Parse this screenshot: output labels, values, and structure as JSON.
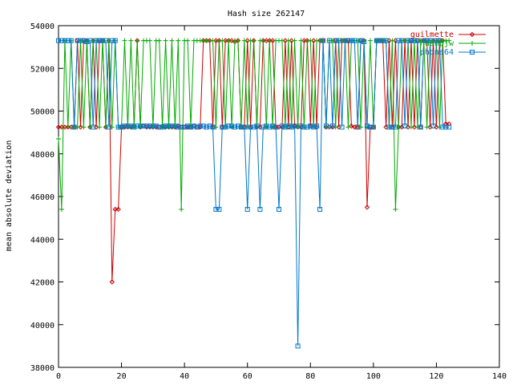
{
  "chart_data": {
    "type": "line",
    "title": "Hash size 262147",
    "xlabel": "",
    "ylabel": "mean absolute deviation",
    "xlim": [
      0,
      140
    ],
    "ylim": [
      38000,
      54000
    ],
    "xticks": [
      0,
      20,
      40,
      60,
      80,
      100,
      120,
      140
    ],
    "yticks": [
      38000,
      40000,
      42000,
      44000,
      46000,
      48000,
      50000,
      52000,
      54000
    ],
    "xtick_labels": [
      "0",
      "20",
      "40",
      "60",
      "80",
      "100",
      "120",
      "140"
    ],
    "ytick_labels": [
      "38000",
      "40000",
      "42000",
      "44000",
      "46000",
      "48000",
      "50000",
      "52000",
      "54000"
    ],
    "grid": false,
    "legend_position": "top-right",
    "series": [
      {
        "name": "guilmette",
        "color": "#cc0000",
        "marker": "diamond",
        "x": [
          0,
          1,
          2,
          3,
          4,
          5,
          6,
          7,
          8,
          9,
          10,
          11,
          12,
          13,
          14,
          15,
          16,
          17,
          18,
          19,
          20,
          21,
          22,
          23,
          24,
          25,
          26,
          27,
          28,
          29,
          30,
          31,
          32,
          33,
          34,
          35,
          36,
          37,
          38,
          39,
          40,
          41,
          42,
          43,
          44,
          45,
          46,
          47,
          48,
          49,
          50,
          51,
          52,
          53,
          54,
          55,
          56,
          57,
          58,
          59,
          60,
          61,
          62,
          63,
          64,
          65,
          66,
          67,
          68,
          69,
          70,
          71,
          72,
          73,
          74,
          75,
          76,
          77,
          78,
          79,
          80,
          81,
          82,
          83,
          84,
          85,
          86,
          87,
          88,
          89,
          90,
          91,
          92,
          93,
          94,
          95,
          96,
          97,
          98,
          99,
          100,
          101,
          102,
          103,
          104,
          105,
          106,
          107,
          108,
          109,
          110,
          111,
          112,
          113,
          114,
          115,
          116,
          117,
          118,
          119,
          120,
          121,
          122,
          123,
          124
        ],
        "y": [
          49250,
          49250,
          49250,
          49250,
          49250,
          49250,
          53300,
          49250,
          53300,
          53300,
          49250,
          53300,
          49250,
          53300,
          53300,
          49250,
          53300,
          42000,
          45400,
          45400,
          49250,
          49250,
          49250,
          49250,
          49300,
          53300,
          49250,
          49300,
          49250,
          49250,
          49250,
          49250,
          49250,
          49300,
          49250,
          49250,
          49250,
          49250,
          49300,
          49250,
          49250,
          49250,
          49250,
          49300,
          49250,
          49250,
          53300,
          53300,
          53300,
          49250,
          53300,
          53300,
          49250,
          53300,
          53300,
          53300,
          53250,
          53300,
          49250,
          49250,
          53300,
          49250,
          53300,
          49250,
          49250,
          53300,
          53300,
          53300,
          53300,
          49250,
          49250,
          49250,
          53300,
          49250,
          53300,
          49300,
          49250,
          49250,
          53300,
          53300,
          49300,
          53300,
          49250,
          53300,
          53300,
          49250,
          49250,
          49250,
          53300,
          49250,
          53300,
          53300,
          53300,
          49300,
          49250,
          49250,
          53300,
          53300,
          45500,
          49250,
          49250,
          53300,
          53300,
          53300,
          49250,
          53300,
          49250,
          53300,
          49250,
          49250,
          53300,
          49250,
          53300,
          49250,
          53300,
          49250,
          53300,
          53300,
          49250,
          53300,
          49250,
          53300,
          53300,
          49400,
          49400
        ]
      },
      {
        "name": "hashpjw",
        "color": "#00aa00",
        "marker": "plus",
        "x": [
          0,
          1,
          2,
          3,
          4,
          5,
          6,
          7,
          8,
          9,
          10,
          11,
          12,
          13,
          14,
          15,
          16,
          17,
          18,
          19,
          20,
          21,
          22,
          23,
          24,
          25,
          26,
          27,
          28,
          29,
          30,
          31,
          32,
          33,
          34,
          35,
          36,
          37,
          38,
          39,
          40,
          41,
          42,
          43,
          44,
          45,
          46,
          47,
          48,
          49,
          50,
          51,
          52,
          53,
          54,
          55,
          56,
          57,
          58,
          59,
          60,
          61,
          62,
          63,
          64,
          65,
          66,
          67,
          68,
          69,
          70,
          71,
          72,
          73,
          74,
          75,
          76,
          77,
          78,
          79,
          80,
          81,
          82,
          83,
          84,
          85,
          86,
          87,
          88,
          89,
          90,
          91,
          92,
          93,
          94,
          95,
          96,
          97,
          98,
          99,
          100,
          101,
          102,
          103,
          104,
          105,
          106,
          107,
          108,
          109,
          110,
          111,
          112,
          113,
          114,
          115,
          116,
          117,
          118,
          119,
          120,
          121,
          122,
          123,
          124
        ],
        "y": [
          48700,
          45400,
          53300,
          49250,
          53300,
          49250,
          49250,
          53300,
          49250,
          53300,
          49250,
          53300,
          53300,
          49250,
          53300,
          49250,
          53300,
          49250,
          53300,
          49250,
          49300,
          53300,
          49250,
          53300,
          49250,
          53300,
          49250,
          53300,
          53300,
          53300,
          49250,
          53300,
          53300,
          49250,
          53300,
          49250,
          53300,
          49250,
          53300,
          45400,
          53300,
          53300,
          49250,
          53300,
          53300,
          53300,
          53300,
          53300,
          53300,
          53300,
          49250,
          53300,
          53300,
          49250,
          53300,
          49250,
          53300,
          53300,
          49250,
          53300,
          49250,
          53300,
          53300,
          49250,
          53300,
          53300,
          49250,
          53300,
          49250,
          53300,
          53300,
          53300,
          49250,
          53300,
          49250,
          53300,
          49250,
          53300,
          49250,
          53300,
          53300,
          49250,
          53300,
          53300,
          53300,
          49250,
          53300,
          53300,
          49250,
          53300,
          53300,
          53300,
          49250,
          53300,
          53300,
          53300,
          49250,
          53300,
          49250,
          53300,
          49250,
          53300,
          53300,
          53300,
          53300,
          49250,
          53300,
          45400,
          49250,
          53300,
          53300,
          53300,
          49250,
          53300,
          49250,
          53300,
          53300,
          49250,
          53300,
          53300,
          53300,
          49250,
          53300,
          53300,
          53300
        ]
      },
      {
        "name": "phone64",
        "color": "#0077cc",
        "marker": "square",
        "x": [
          0,
          1,
          2,
          3,
          4,
          5,
          6,
          7,
          8,
          9,
          10,
          11,
          12,
          13,
          14,
          15,
          16,
          17,
          18,
          19,
          20,
          21,
          22,
          23,
          24,
          25,
          26,
          27,
          28,
          29,
          30,
          31,
          32,
          33,
          34,
          35,
          36,
          37,
          38,
          39,
          40,
          41,
          42,
          43,
          44,
          45,
          46,
          47,
          48,
          49,
          50,
          51,
          52,
          53,
          54,
          55,
          56,
          57,
          58,
          59,
          60,
          61,
          62,
          63,
          64,
          65,
          66,
          67,
          68,
          69,
          70,
          71,
          72,
          73,
          74,
          75,
          76,
          77,
          78,
          79,
          80,
          81,
          82,
          83,
          84,
          85,
          86,
          87,
          88,
          89,
          90,
          91,
          92,
          93,
          94,
          95,
          96,
          97,
          98,
          99,
          100,
          101,
          102,
          103,
          104,
          105,
          106,
          107,
          108,
          109,
          110,
          111,
          112,
          113,
          114,
          115,
          116,
          117,
          118,
          119,
          120,
          121,
          122,
          123,
          124
        ],
        "y": [
          53300,
          53300,
          53300,
          53300,
          53300,
          49250,
          53300,
          53300,
          53300,
          53250,
          53300,
          49250,
          53300,
          53300,
          53300,
          53300,
          49250,
          53300,
          53300,
          49250,
          49250,
          49300,
          49300,
          49300,
          49250,
          49300,
          49300,
          49300,
          49300,
          49300,
          49300,
          49300,
          49250,
          49250,
          49300,
          49300,
          49300,
          49300,
          49250,
          49250,
          49250,
          49300,
          49250,
          49300,
          49250,
          49300,
          49300,
          49250,
          49300,
          49250,
          45400,
          45400,
          49250,
          49250,
          49300,
          49300,
          49250,
          49300,
          49250,
          49250,
          45400,
          49250,
          49250,
          49300,
          45400,
          49250,
          49300,
          49250,
          49300,
          49250,
          45400,
          49300,
          49250,
          49300,
          49250,
          49300,
          39000,
          49300,
          49250,
          49250,
          49300,
          49250,
          49300,
          45400,
          53300,
          49300,
          53300,
          49300,
          53300,
          53300,
          49250,
          53300,
          53300,
          53300,
          53300,
          49250,
          53300,
          53250,
          49300,
          49250,
          49250,
          53300,
          53300,
          53300,
          53300,
          49250,
          49250,
          49250,
          53300,
          53300,
          49300,
          53300,
          53300,
          53300,
          53300,
          49250,
          53300,
          53300,
          53300,
          49300,
          53300,
          53300,
          49250,
          49250,
          49250
        ]
      }
    ]
  }
}
